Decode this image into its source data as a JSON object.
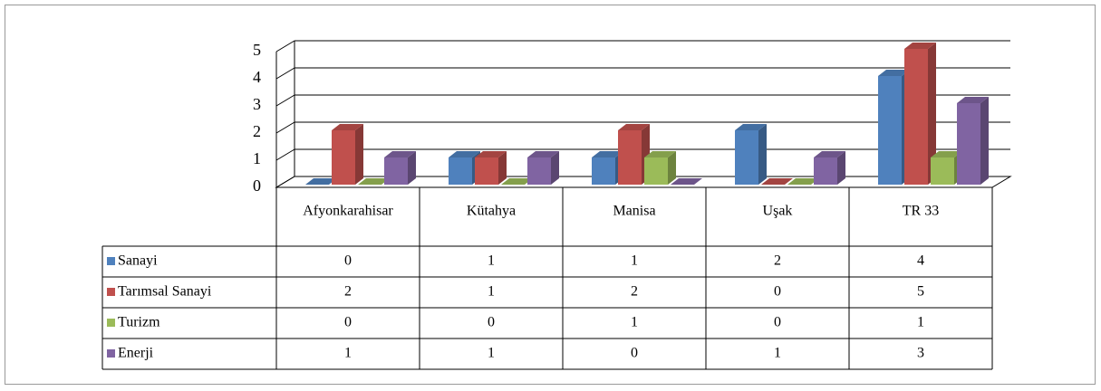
{
  "chart_data": {
    "type": "bar3d",
    "categories": [
      "Afyonkarahisar",
      "Kütahya",
      "Manisa",
      "Uşak",
      "TR 33"
    ],
    "series": [
      {
        "name": "Sanayi",
        "color": "#4f81bd",
        "values": [
          0,
          1,
          1,
          2,
          4
        ]
      },
      {
        "name": "Tarımsal Sanayi",
        "color": "#c0504d",
        "values": [
          2,
          1,
          2,
          0,
          5
        ]
      },
      {
        "name": "Turizm",
        "color": "#9bbb59",
        "values": [
          0,
          0,
          1,
          0,
          1
        ]
      },
      {
        "name": "Enerji",
        "color": "#8064a2",
        "values": [
          1,
          1,
          0,
          1,
          3
        ]
      }
    ],
    "ylim": [
      0,
      5
    ],
    "yticks": [
      0,
      1,
      2,
      3,
      4,
      5
    ],
    "grid": true,
    "data_table": true
  }
}
